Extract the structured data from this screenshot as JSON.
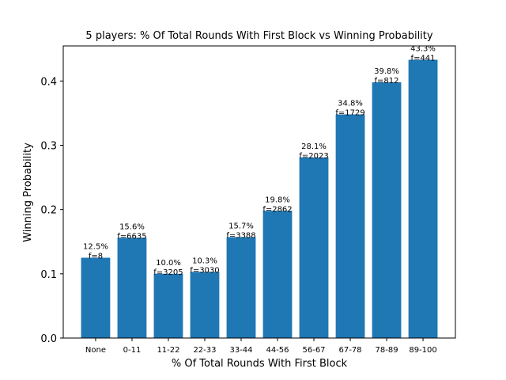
{
  "chart_data": {
    "type": "bar",
    "title": "5 players: % Of Total Rounds With First Block vs Winning Probability",
    "xlabel": "% Of Total Rounds With First Block",
    "ylabel": "Winning Probability",
    "categories": [
      "None",
      "0-11",
      "11-22",
      "22-33",
      "33-44",
      "44-56",
      "56-67",
      "67-78",
      "78-89",
      "89-100"
    ],
    "values": [
      0.125,
      0.156,
      0.1,
      0.103,
      0.157,
      0.198,
      0.281,
      0.348,
      0.398,
      0.433
    ],
    "percent_labels": [
      "12.5%",
      "15.6%",
      "10.0%",
      "10.3%",
      "15.7%",
      "19.8%",
      "28.1%",
      "34.8%",
      "39.8%",
      "43.3%"
    ],
    "freq_labels": [
      "f=8",
      "f=6635",
      "f=3205",
      "f=3030",
      "f=3388",
      "f=2862",
      "f=2023",
      "f=1729",
      "f=812",
      "f=441"
    ],
    "yticks": [
      0.0,
      0.1,
      0.2,
      0.3,
      0.4
    ],
    "ytick_labels": [
      "0.0",
      "0.1",
      "0.2",
      "0.3",
      "0.4"
    ],
    "ylim": [
      0,
      0.4546
    ],
    "grid": false,
    "bar_color": "#1f77b4"
  }
}
